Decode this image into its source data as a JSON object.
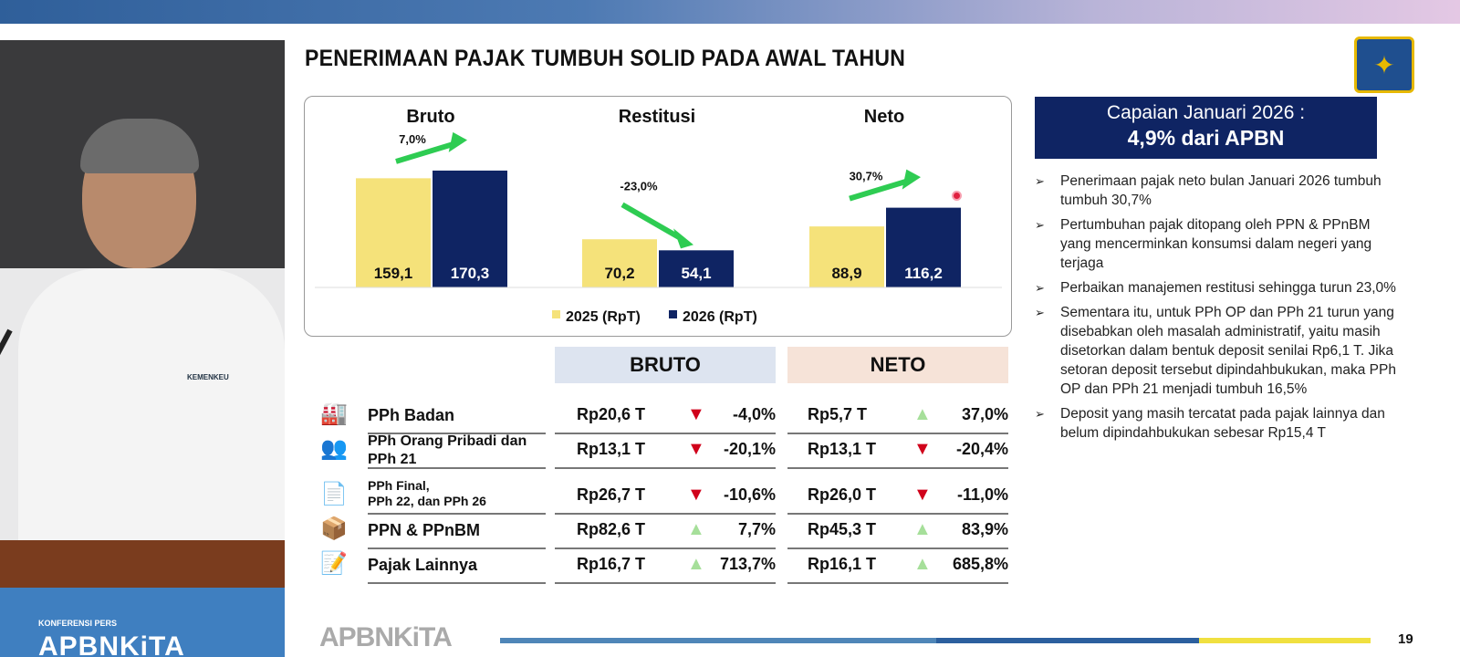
{
  "slide": {
    "title": "PENERIMAAN PAJAK TUMBUH SOLID PADA AWAL TAHUN",
    "page_number": "19",
    "footer_logo": "APBNKiTA"
  },
  "video": {
    "overlay_label": "KONFERENSI PERS",
    "overlay_brand": "APBNKiTA",
    "badge": "KEMENKEU"
  },
  "chart_data": {
    "type": "bar",
    "categories": [
      "Bruto",
      "Restitusi",
      "Neto"
    ],
    "series": [
      {
        "name": "2025 (RpT)",
        "values": [
          159.1,
          70.2,
          88.9
        ],
        "color": "#f5e27a"
      },
      {
        "name": "2026 (RpT)",
        "values": [
          170.3,
          54.1,
          116.2
        ],
        "color": "#0f2463"
      }
    ],
    "value_labels": [
      [
        "159,1",
        "70,2",
        "88,9"
      ],
      [
        "170,3",
        "54,1",
        "116,2"
      ]
    ],
    "growth_labels": [
      "7,0%",
      "-23,0%",
      "30,7%"
    ],
    "growth_direction": [
      "up",
      "down",
      "up"
    ],
    "legend_position": "bottom",
    "grid": false
  },
  "summary": {
    "line1": "Capaian Januari 2026 :",
    "line2": "4,9% dari APBN",
    "bullets": [
      "Penerimaan pajak neto bulan Januari 2026 tumbuh tumbuh 30,7%",
      "Pertumbuhan pajak ditopang oleh PPN & PPnBM yang mencerminkan konsumsi dalam negeri yang terjaga",
      "Perbaikan manajemen restitusi sehingga turun 23,0%",
      "Sementara itu, untuk PPh OP dan PPh 21 turun yang disebabkan oleh masalah administratif, yaitu masih disetorkan dalam bentuk deposit senilai Rp6,1 T. Jika setoran deposit tersebut dipindahbukukan, maka PPh OP dan PPh 21 menjadi tumbuh 16,5%",
      "Deposit yang masih tercatat pada pajak lainnya dan belum dipindahbukukan sebesar Rp15,4 T"
    ]
  },
  "table": {
    "headers": {
      "bruto": "BRUTO",
      "neto": "NETO"
    },
    "colors": {
      "bruto_header": "#dde4f0",
      "neto_header": "#f6e3d8",
      "up": "#a6df9a",
      "down": "#d0021b"
    },
    "rows": [
      {
        "label": "PPh Badan",
        "icon": "factory-icon",
        "bruto": "Rp20,6 T",
        "bruto_dir": "down",
        "bruto_pct": "-4,0%",
        "neto": "Rp5,7 T",
        "neto_dir": "up",
        "neto_pct": "37,0%"
      },
      {
        "label": "PPh Orang Pribadi dan PPh 21",
        "icon": "people-icon",
        "bruto": "Rp13,1 T",
        "bruto_dir": "down",
        "bruto_pct": "-20,1%",
        "neto": "Rp13,1 T",
        "neto_dir": "down",
        "neto_pct": "-20,4%"
      },
      {
        "label": "PPh Final,\nPPh 22, dan PPh 26",
        "icon": "document-check-icon",
        "bruto": "Rp26,7 T",
        "bruto_dir": "down",
        "bruto_pct": "-10,6%",
        "neto": "Rp26,0 T",
        "neto_dir": "down",
        "neto_pct": "-11,0%"
      },
      {
        "label": "PPN & PPnBM",
        "icon": "boxes-icon",
        "bruto": "Rp82,6 T",
        "bruto_dir": "up",
        "bruto_pct": "7,7%",
        "neto": "Rp45,3 T",
        "neto_dir": "up",
        "neto_pct": "83,9%"
      },
      {
        "label": "Pajak Lainnya",
        "icon": "edit-note-icon",
        "bruto": "Rp16,7 T",
        "bruto_dir": "up",
        "bruto_pct": "713,7%",
        "neto": "Rp16,1 T",
        "neto_dir": "up",
        "neto_pct": "685,8%"
      }
    ]
  }
}
